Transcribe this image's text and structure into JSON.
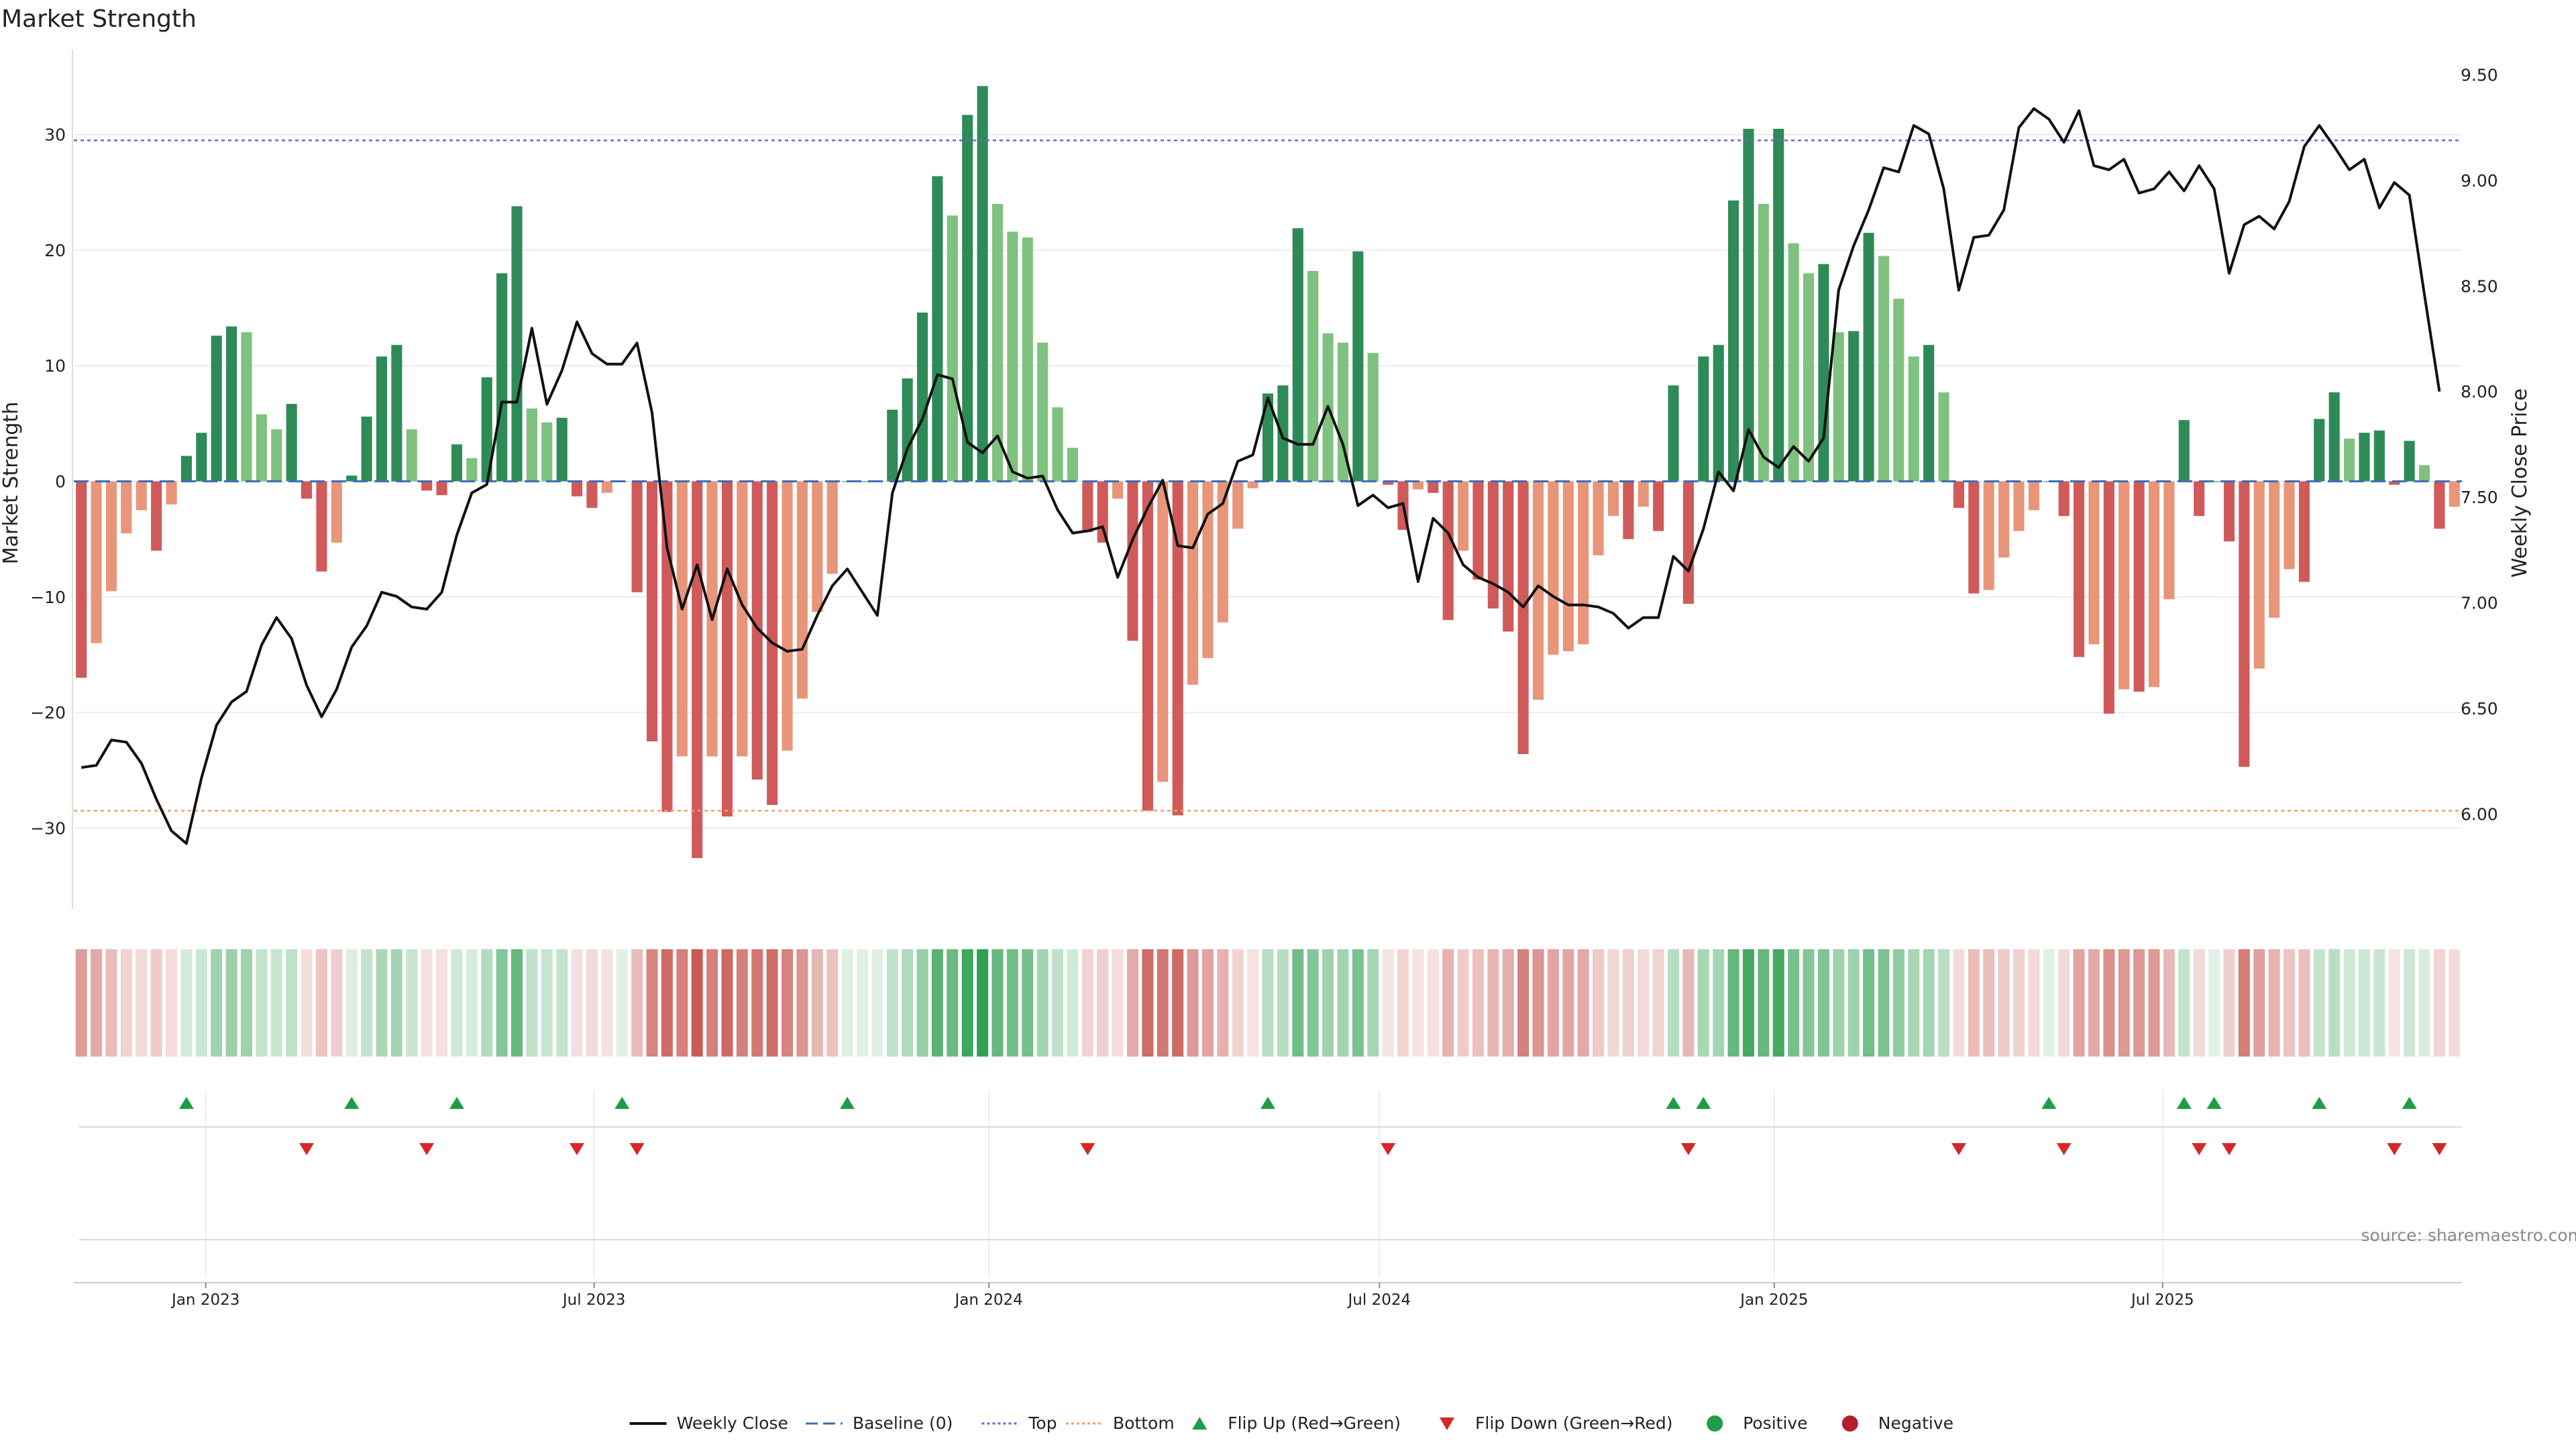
{
  "chart_data": {
    "type": "bar",
    "title": "Market Strength",
    "ylabel": "Market Strength",
    "y2label": "Weekly Close Price",
    "ylim": [
      -37,
      37
    ],
    "y2lim": [
      5.55,
      9.6
    ],
    "yticks": [
      -30,
      -20,
      -10,
      0,
      10,
      20,
      30
    ],
    "y2ticks": [
      "6.00",
      "6.50",
      "7.00",
      "7.50",
      "8.00",
      "8.50",
      "9.00",
      "9.50"
    ],
    "top_level": 29.5,
    "bottom_level": -28.5,
    "x_start": "2022-11-04",
    "x_step_days": 7,
    "xticks": [
      {
        "date": "2023-01-01",
        "label": "Jan 2023"
      },
      {
        "date": "2023-07-01",
        "label": "Jul 2023"
      },
      {
        "date": "2024-01-01",
        "label": "Jan 2024"
      },
      {
        "date": "2024-07-01",
        "label": "Jul 2024"
      },
      {
        "date": "2025-01-01",
        "label": "Jan 2025"
      },
      {
        "date": "2025-07-01",
        "label": "Jul 2025"
      }
    ],
    "strength": [
      -17,
      -14,
      -9.5,
      -4.5,
      -2.5,
      -6,
      -2,
      2.2,
      4.2,
      12.6,
      13.4,
      12.9,
      5.8,
      4.5,
      6.7,
      -1.5,
      -7.8,
      -5.3,
      0.5,
      5.6,
      10.8,
      11.8,
      4.5,
      -0.8,
      -1.2,
      3.2,
      2,
      9,
      18,
      23.8,
      6.3,
      5.1,
      5.5,
      -1.3,
      -2.3,
      -1,
      0,
      -9.6,
      -22.5,
      -28.6,
      -23.8,
      -32.6,
      -23.8,
      -29,
      -23.8,
      -25.8,
      -28,
      -23.3,
      -18.8,
      -11.3,
      -8,
      0,
      0,
      0,
      6.2,
      8.9,
      14.6,
      26.4,
      23,
      31.7,
      34.2,
      24,
      21.6,
      21.1,
      12,
      6.4,
      2.9,
      -4.4,
      -5.3,
      -1.5,
      -13.8,
      -28.5,
      -26,
      -28.9,
      -17.6,
      -15.3,
      -12.2,
      -4.1,
      -0.6,
      7.6,
      8.3,
      21.9,
      18.2,
      12.8,
      12,
      19.9,
      11.1,
      -0.3,
      -4.2,
      -0.7,
      -1,
      -12,
      -6,
      -8.5,
      -11,
      -13,
      -23.6,
      -18.9,
      -15,
      -14.7,
      -14.1,
      -6.4,
      -3,
      -5,
      -2.2,
      -4.3,
      8.3,
      -10.6,
      10.8,
      11.8,
      24.3,
      30.5,
      24,
      30.5,
      20.6,
      18,
      18.8,
      12.9,
      13,
      21.5,
      19.5,
      15.8,
      10.8,
      11.8,
      7.7,
      -2.3,
      -9.7,
      -9.4,
      -6.6,
      -4.3,
      -2.5,
      0,
      -3,
      -15.2,
      -14.1,
      -20.1,
      -18,
      -18.2,
      -17.8,
      -10.2,
      5.3,
      -3,
      0,
      -5.2,
      -24.7,
      -16.2,
      -11.8,
      -7.6,
      -8.7,
      5.4,
      7.7,
      3.7,
      4.2,
      4.4,
      -0.3,
      3.5,
      1.4,
      -4.1,
      -2.2
    ],
    "weekly_close": [
      6.22,
      6.23,
      6.35,
      6.34,
      6.24,
      6.07,
      5.92,
      5.86,
      6.17,
      6.42,
      6.53,
      6.58,
      6.8,
      6.93,
      6.83,
      6.61,
      6.46,
      6.59,
      6.79,
      6.89,
      7.05,
      7.03,
      6.98,
      6.97,
      7.05,
      7.32,
      7.52,
      7.56,
      7.95,
      7.95,
      8.3,
      7.94,
      8.1,
      8.33,
      8.18,
      8.13,
      8.13,
      8.23,
      7.9,
      7.26,
      6.97,
      7.18,
      6.92,
      7.16,
      6.99,
      6.88,
      6.81,
      6.77,
      6.78,
      6.94,
      7.08,
      7.16,
      7.05,
      6.94,
      7.52,
      7.73,
      7.87,
      8.08,
      8.06,
      7.76,
      7.71,
      7.79,
      7.62,
      7.59,
      7.6,
      7.44,
      7.33,
      7.34,
      7.36,
      7.12,
      7.3,
      7.45,
      7.58,
      7.27,
      7.26,
      7.42,
      7.47,
      7.67,
      7.7,
      7.97,
      7.78,
      7.75,
      7.75,
      7.93,
      7.75,
      7.46,
      7.51,
      7.45,
      7.47,
      7.1,
      7.4,
      7.33,
      7.18,
      7.12,
      7.09,
      7.05,
      6.98,
      7.08,
      7.03,
      6.99,
      6.99,
      6.98,
      6.95,
      6.88,
      6.93,
      6.93,
      7.22,
      7.15,
      7.35,
      7.62,
      7.53,
      7.82,
      7.69,
      7.64,
      7.74,
      7.67,
      7.78,
      8.48,
      8.69,
      8.86,
      9.06,
      9.04,
      9.26,
      9.22,
      8.96,
      8.48,
      8.73,
      8.74,
      8.86,
      9.25,
      9.34,
      9.29,
      9.18,
      9.33,
      9.07,
      9.05,
      9.1,
      8.94,
      8.96,
      9.04,
      8.95,
      9.07,
      8.96,
      8.56,
      8.79,
      8.83,
      8.77,
      8.9,
      9.16,
      9.26,
      9.16,
      9.05,
      9.1,
      8.87,
      8.99,
      8.93,
      8.46,
      8.0
    ]
  },
  "legend": [
    {
      "key": "weekly_close",
      "label": "Weekly Close",
      "color": "#111111",
      "style": "solid-line"
    },
    {
      "key": "baseline",
      "label": "Baseline (0)",
      "color": "#3b6fb6",
      "style": "dashed-line"
    },
    {
      "key": "top",
      "label": "Top",
      "color": "#7a5ed6",
      "style": "dotted-line"
    },
    {
      "key": "bottom",
      "label": "Bottom",
      "color": "#f0a060",
      "style": "dotted-line"
    },
    {
      "key": "flip_up",
      "label": "Flip Up (Red→Green)",
      "color": "#1f9d46",
      "style": "triangle-up"
    },
    {
      "key": "flip_down",
      "label": "Flip Down (Green→Red)",
      "color": "#d62728",
      "style": "triangle-down"
    },
    {
      "key": "positive",
      "label": "Positive",
      "color": "#1f9d46",
      "style": "dot"
    },
    {
      "key": "negative",
      "label": "Negative",
      "color": "#b3202a",
      "style": "dot"
    }
  ],
  "colors": {
    "pos_strong": "#2e8b57",
    "pos_weak": "#7fc17f",
    "neg_strong": "#d05a5a",
    "neg_weak": "#e8957a",
    "baseline": "#3b6fb6",
    "top": "#7a5ed6",
    "bottom": "#f0a060"
  },
  "source_text": "source: sharemaestro.com"
}
